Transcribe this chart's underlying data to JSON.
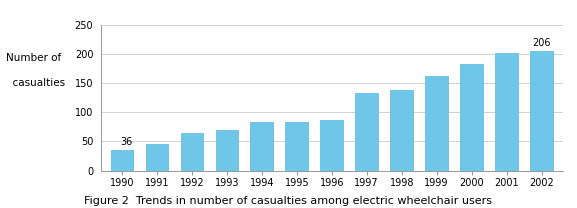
{
  "years": [
    "1990",
    "1991",
    "1992",
    "1993",
    "1994",
    "1995",
    "1996",
    "1997",
    "1998",
    "1999",
    "2000",
    "2001",
    "2002"
  ],
  "values": [
    36,
    46,
    65,
    69,
    83,
    83,
    87,
    133,
    138,
    162,
    183,
    201,
    206
  ],
  "bar_color": "#6ec6e8",
  "bar_edge_color": "#5ab8de",
  "ylim": [
    0,
    250
  ],
  "yticks": [
    0,
    50,
    100,
    150,
    200,
    250
  ],
  "ylabel_line1": "Number of",
  "ylabel_line2": "  casualties",
  "caption": "Figure 2  Trends in number of casualties among electric wheelchair users",
  "annotate_first": {
    "text": "36",
    "bar_index": 0
  },
  "annotate_last": {
    "text": "206",
    "bar_index": 12
  },
  "grid_color": "#cccccc",
  "background_color": "#ffffff",
  "ylabel_fontsize": 7.5,
  "tick_fontsize": 7,
  "caption_fontsize": 8,
  "annotation_fontsize": 7
}
